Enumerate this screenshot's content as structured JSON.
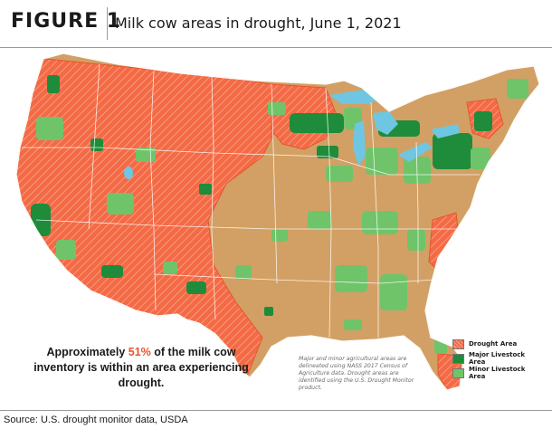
{
  "header": {
    "figure_label": "FIGURE 1",
    "title": "Milk cow areas in drought, June 1, 2021"
  },
  "legend": {
    "items": [
      {
        "label": "Drought Area",
        "color": "#f46a45"
      },
      {
        "label": "Major Livestock Area",
        "color": "#1e8c3a"
      },
      {
        "label": "Minor Livestock Area",
        "color": "#6fc46a"
      }
    ]
  },
  "colors": {
    "land": "#d2a064",
    "drought": "#f46a45",
    "major": "#1e8c3a",
    "minor": "#6fc46a",
    "water": "#6fc6e2",
    "border": "#ffffff"
  },
  "callout": {
    "prefix": "Approximately ",
    "percent": "51%",
    "suffix": " of the milk cow inventory is within an area experiencing drought."
  },
  "note": "Major and minor agricultural areas are delineated using NASS 2017 Census of Agriculture data. Drought areas are identified using the U.S. Drought Monitor product.",
  "source": "Source: U.S. drought monitor data, USDA"
}
